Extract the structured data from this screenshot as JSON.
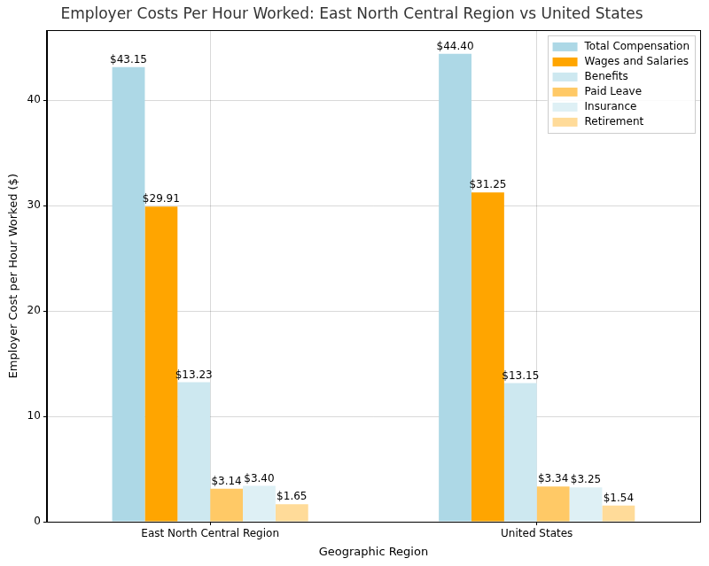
{
  "chart_data": {
    "type": "bar",
    "title": "Employer Costs Per Hour Worked: East North Central Region vs United States",
    "x_label": "Geographic Region",
    "y_label": "Employer Cost per Hour Worked ($)",
    "categories": [
      "East North Central Region",
      "United States"
    ],
    "series": [
      {
        "name": "Total Compensation",
        "color": "#add8e6",
        "values": [
          43.15,
          44.4
        ],
        "value_labels": [
          "$43.15",
          "$44.40"
        ]
      },
      {
        "name": "Wages and Salaries",
        "color": "#ffa500",
        "values": [
          29.91,
          31.25
        ],
        "value_labels": [
          "$29.91",
          "$31.25"
        ]
      },
      {
        "name": "Benefits",
        "color": "#cde8f0",
        "values": [
          13.23,
          13.15
        ],
        "value_labels": [
          "$13.23",
          "$13.15"
        ]
      },
      {
        "name": "Paid Leave",
        "color": "#ffc966",
        "values": [
          3.14,
          3.34
        ],
        "value_labels": [
          "$3.14",
          "$3.34"
        ]
      },
      {
        "name": "Insurance",
        "color": "#def0f5",
        "values": [
          3.4,
          3.25
        ],
        "value_labels": [
          "$3.40",
          "$3.25"
        ]
      },
      {
        "name": "Retirement",
        "color": "#ffdb99",
        "values": [
          1.65,
          1.54
        ],
        "value_labels": [
          "$1.65",
          "$1.54"
        ]
      }
    ],
    "ylim": [
      0,
      46.62
    ],
    "yticks": [
      0,
      10,
      20,
      30,
      40
    ],
    "grid": true,
    "legend": "upper right",
    "data_labels": true
  }
}
